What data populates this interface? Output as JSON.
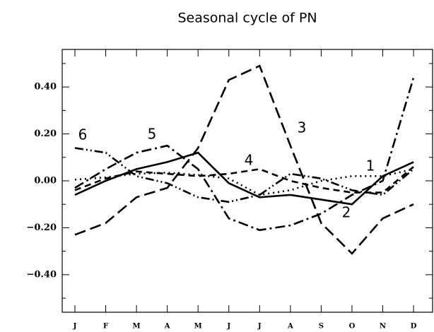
{
  "chart_data": {
    "type": "line",
    "title": "Seasonal cycle of PN",
    "categories": [
      "J",
      "F",
      "M",
      "A",
      "M",
      "J",
      "J",
      "A",
      "S",
      "O",
      "N",
      "D"
    ],
    "ylim": [
      -0.56,
      0.56
    ],
    "yticks": [
      {
        "value": -0.4,
        "label": "−0.40"
      },
      {
        "value": -0.2,
        "label": "−0.20"
      },
      {
        "value": 0,
        "label": "0.00"
      },
      {
        "value": 0.2,
        "label": "0.20"
      },
      {
        "value": 0.4,
        "label": "0.40"
      }
    ],
    "yminorticks": [
      -0.5,
      -0.3,
      -0.1,
      0.1,
      0.3,
      0.5
    ],
    "series": [
      {
        "name": "1",
        "color": "#000000",
        "values": [
          0.005,
          0.015,
          0.03,
          0.035,
          0.025,
          0.01,
          -0.06,
          -0.04,
          0.0,
          0.02,
          0.02,
          0.05
        ]
      },
      {
        "name": "2",
        "color": "#000000",
        "values": [
          -0.06,
          0.0,
          0.05,
          0.08,
          0.12,
          -0.01,
          -0.07,
          -0.06,
          -0.08,
          -0.1,
          0.02,
          0.08
        ]
      },
      {
        "name": "3",
        "color": "#000000",
        "values": [
          -0.23,
          -0.18,
          -0.07,
          -0.03,
          0.14,
          0.43,
          0.49,
          0.15,
          -0.18,
          -0.31,
          -0.16,
          -0.1
        ]
      },
      {
        "name": "4",
        "color": "#000000",
        "values": [
          -0.04,
          0.01,
          0.04,
          0.03,
          0.02,
          0.03,
          0.05,
          0.0,
          -0.03,
          -0.05,
          -0.05,
          0.06
        ]
      },
      {
        "name": "5",
        "color": "#000000",
        "values": [
          -0.03,
          0.05,
          0.12,
          0.15,
          0.05,
          -0.16,
          -0.21,
          -0.19,
          -0.14,
          -0.06,
          0.0,
          0.44
        ]
      },
      {
        "name": "6",
        "color": "#000000",
        "values": [
          0.14,
          0.12,
          0.02,
          -0.01,
          -0.07,
          -0.09,
          -0.06,
          0.03,
          0.01,
          -0.04,
          -0.06,
          0.05
        ]
      }
    ]
  }
}
